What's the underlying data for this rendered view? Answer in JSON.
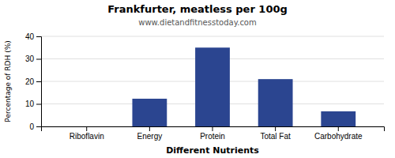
{
  "chart_data": {
    "type": "bar",
    "title": "Frankfurter, meatless per 100g",
    "subtitle": "www.dietandfitnesstoday.com",
    "xlabel": "Different Nutrients",
    "ylabel": "Percentage of RDH (%)",
    "categories": [
      "Riboflavin",
      "Energy",
      "Protein",
      "Total Fat",
      "Carbohydrate"
    ],
    "values": [
      0.0,
      12.3,
      35.0,
      21.0,
      6.7
    ],
    "color": "#2B4590",
    "ylim": [
      0,
      40
    ],
    "yticks": [
      0,
      10,
      20,
      30,
      40
    ],
    "grid": true
  }
}
